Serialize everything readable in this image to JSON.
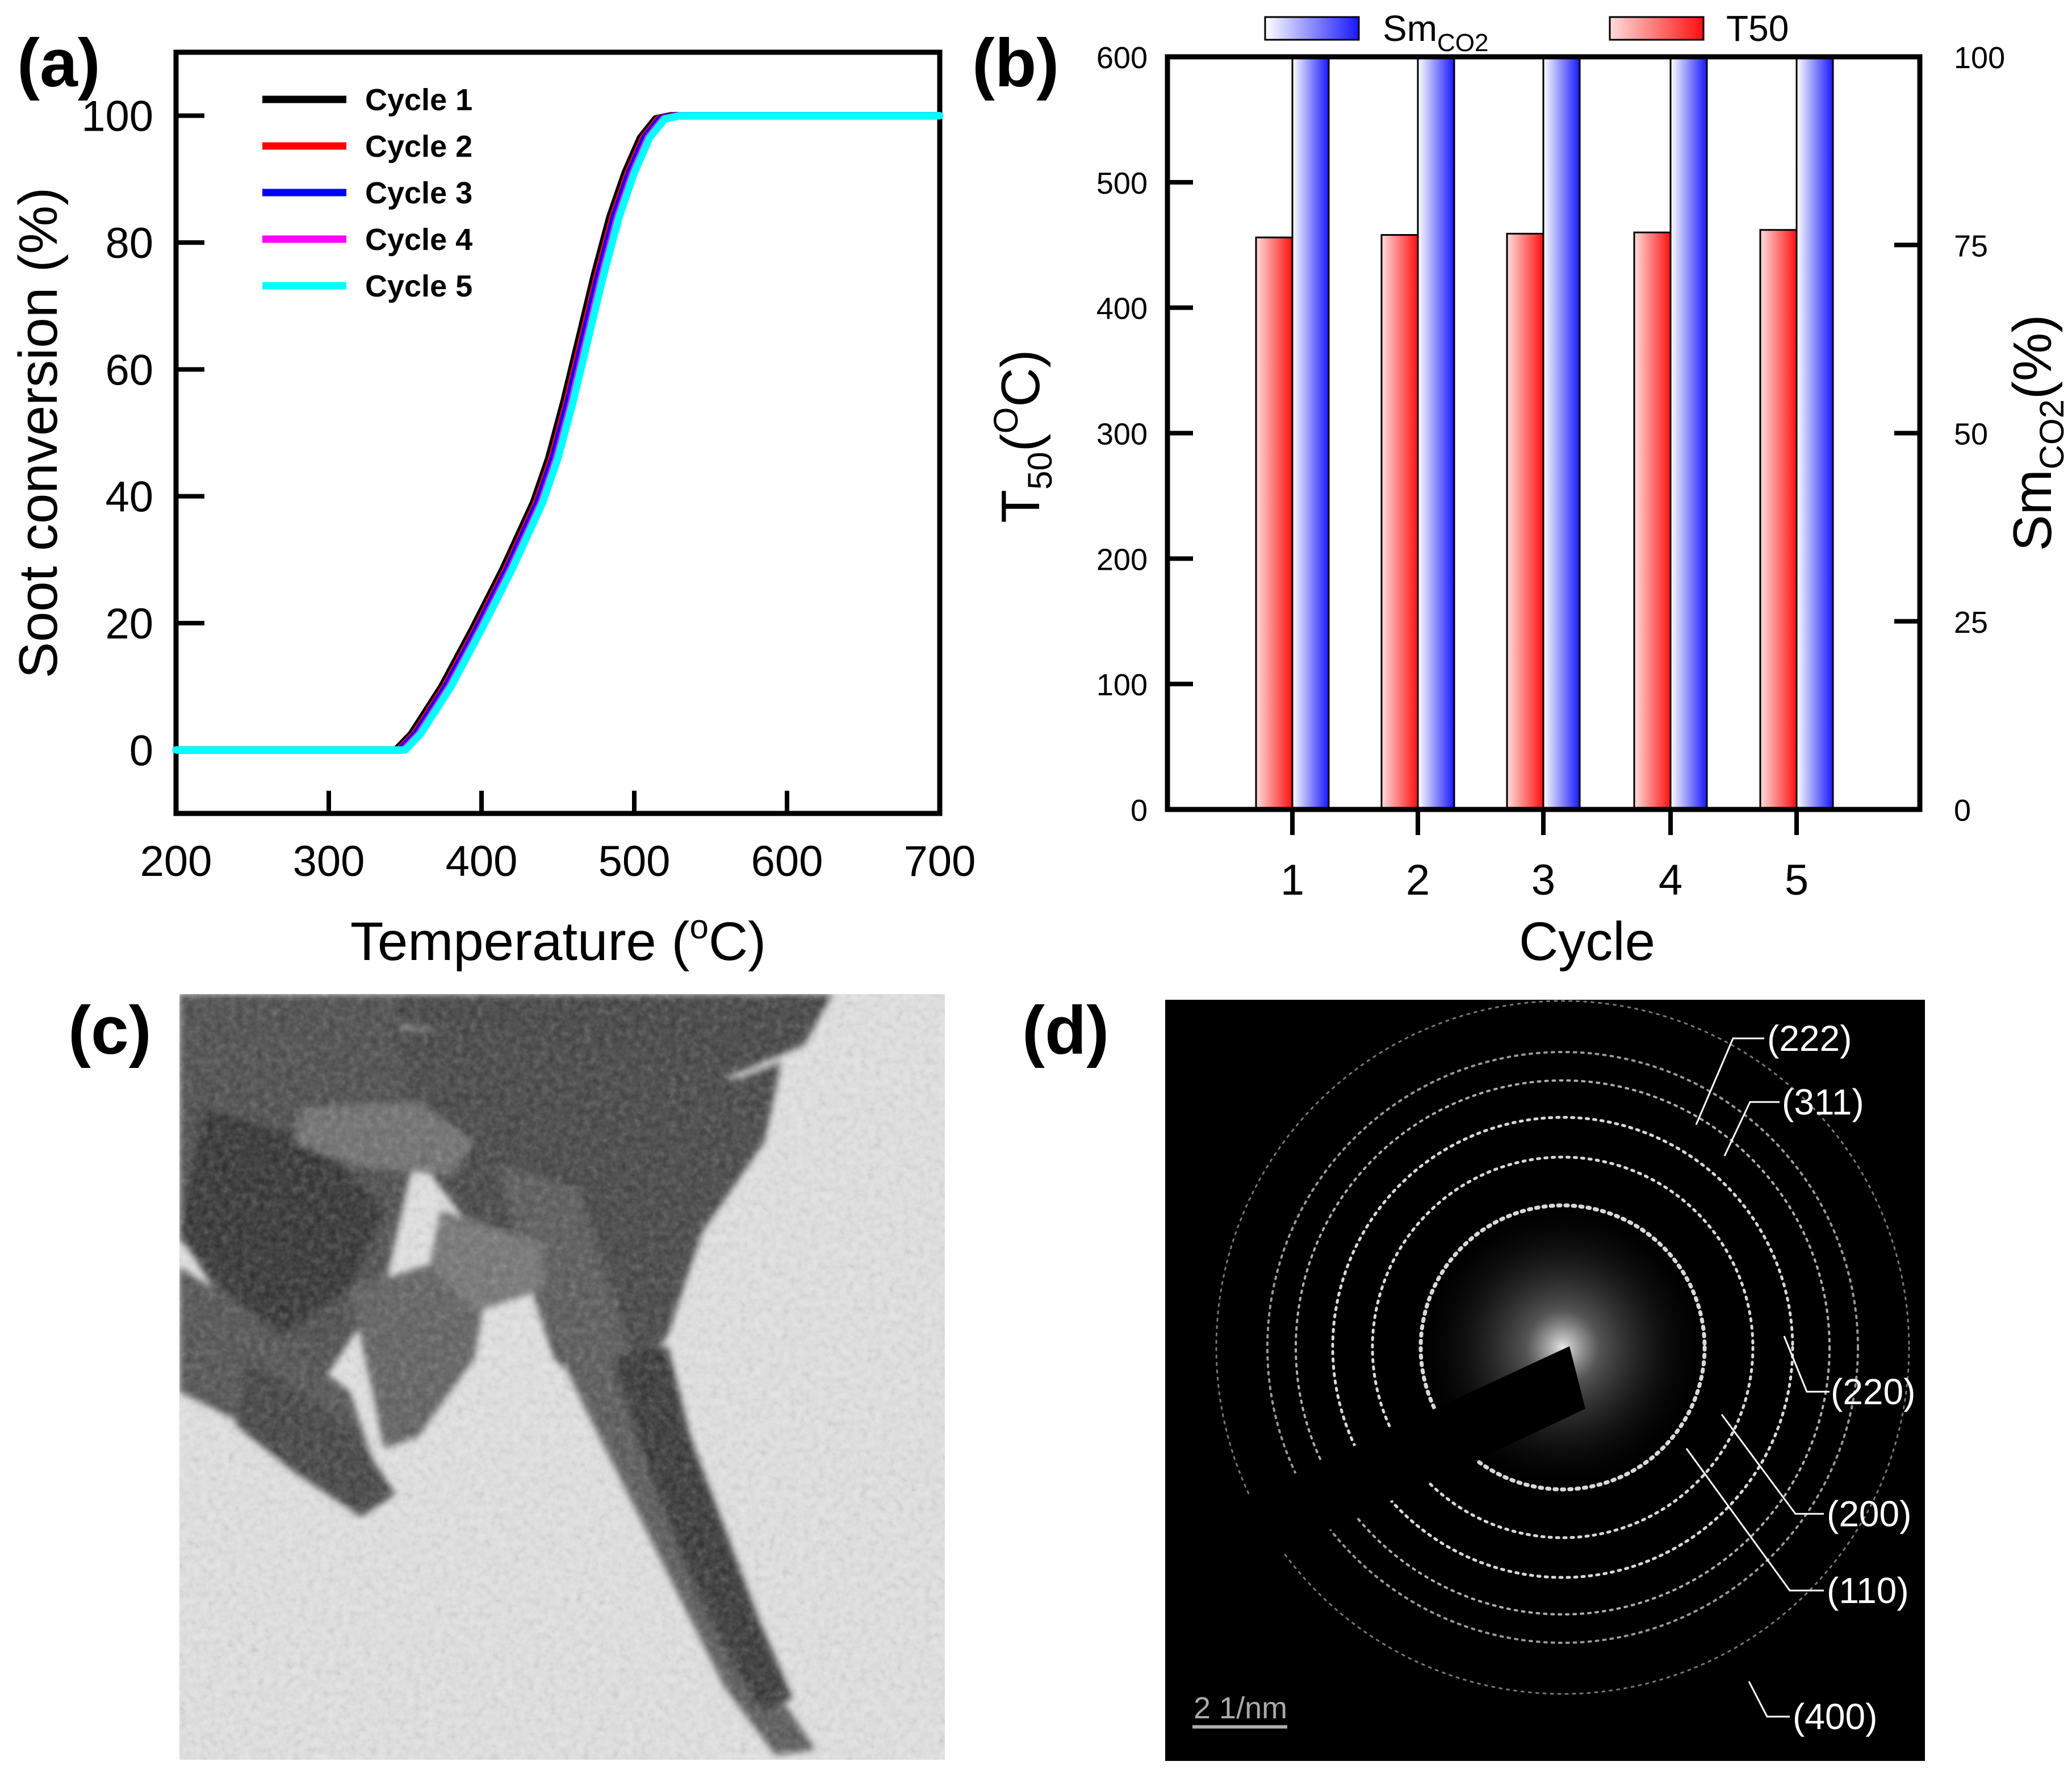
{
  "chart_data": [
    {
      "panel": "(a)",
      "type": "line",
      "title": "",
      "xlabel": "Temperature (oC)",
      "ylabel": "Soot conversion (%)",
      "xlim": [
        200,
        700
      ],
      "ylim": [
        -10,
        110
      ],
      "xticks": [
        "200",
        "300",
        "400",
        "500",
        "600",
        "700"
      ],
      "yticks": [
        "0",
        "20",
        "40",
        "60",
        "80",
        "100"
      ],
      "x": [
        200,
        300,
        340,
        350,
        360,
        380,
        400,
        420,
        440,
        450,
        460,
        470,
        480,
        490,
        500,
        510,
        520,
        530,
        540,
        600,
        700
      ],
      "series": [
        {
          "name": "Cycle 1",
          "color": "#000000",
          "shift": -6,
          "values": [
            0,
            0,
            0,
            0,
            2.5,
            10,
            19,
            28.5,
            39,
            46,
            55,
            65,
            75,
            84,
            91,
            96.5,
            99.5,
            100,
            100,
            100,
            100
          ]
        },
        {
          "name": "Cycle 2",
          "color": "#ff0000",
          "shift": -4,
          "values": [
            0,
            0,
            0,
            0,
            2.5,
            10,
            19,
            28.5,
            39,
            46,
            55,
            65,
            75,
            84,
            91,
            96.5,
            99.5,
            100,
            100,
            100,
            100
          ]
        },
        {
          "name": "Cycle 3",
          "color": "#0000ff",
          "shift": -3,
          "values": [
            0,
            0,
            0,
            0,
            2.5,
            10,
            19,
            28.5,
            39,
            46,
            55,
            65,
            75,
            84,
            91,
            96.5,
            99.5,
            100,
            100,
            100,
            100
          ]
        },
        {
          "name": "Cycle 4",
          "color": "#ff00ff",
          "shift": -1,
          "values": [
            0,
            0,
            0,
            0,
            2.5,
            10,
            19,
            28.5,
            39,
            46,
            55,
            65,
            75,
            84,
            91,
            96.5,
            99.5,
            100,
            100,
            100,
            100
          ]
        },
        {
          "name": "Cycle 5",
          "color": "#00ffff",
          "shift": 0,
          "values": [
            0,
            0,
            0,
            0,
            2.5,
            10,
            19,
            28.5,
            39,
            46,
            55,
            65,
            75,
            84,
            91,
            96.5,
            99.5,
            100,
            100,
            100,
            100
          ]
        }
      ],
      "legend": "top-left"
    },
    {
      "panel": "(b)",
      "type": "bar",
      "title": "",
      "xlabel": "Cycle",
      "ylabel_left": "T50(oC)",
      "ylabel_right": "SmCO2(%)",
      "categories": [
        "1",
        "2",
        "3",
        "4",
        "5"
      ],
      "ylim_left": [
        0,
        600
      ],
      "ylim_right": [
        0,
        100
      ],
      "yticks_left": [
        "0",
        "100",
        "200",
        "300",
        "400",
        "500",
        "600"
      ],
      "yticks_right": [
        "0",
        "25",
        "50",
        "75",
        "100"
      ],
      "series": [
        {
          "name": "T50",
          "axis": "left",
          "color": "#ff2020",
          "values": [
            456,
            458,
            459,
            460,
            462
          ]
        },
        {
          "name": "SmCO2",
          "axis": "right",
          "color": "#2020ff",
          "values": [
            100,
            100,
            100,
            100,
            100
          ]
        }
      ],
      "legend": "top"
    }
  ],
  "panels": {
    "a": {
      "label": "(a)",
      "xtitle_main": "Temperature (",
      "xtitle_sup": "o",
      "xtitle_end": "C)",
      "ytitle": "Soot conversion (%)"
    },
    "b": {
      "label": "(b)",
      "xtitle": "Cycle",
      "ytitle_left_main": "T",
      "ytitle_left_sub": "50",
      "ytitle_left_open": "(",
      "ytitle_left_sup": "O",
      "ytitle_left_end": "C)",
      "ytitle_right_main": "Sm",
      "ytitle_right_sub": "CO2",
      "ytitle_right_end": "(%)",
      "legend_sm_main": "Sm",
      "legend_sm_sub": "CO2",
      "legend_t50": "T50"
    },
    "c": {
      "label": "(c)"
    },
    "d": {
      "label": "(d)",
      "scale_bar": "2 1/nm",
      "rings": [
        "(222)",
        "(311)",
        "(220)",
        "(200)",
        "(110)",
        "(400)"
      ]
    }
  }
}
